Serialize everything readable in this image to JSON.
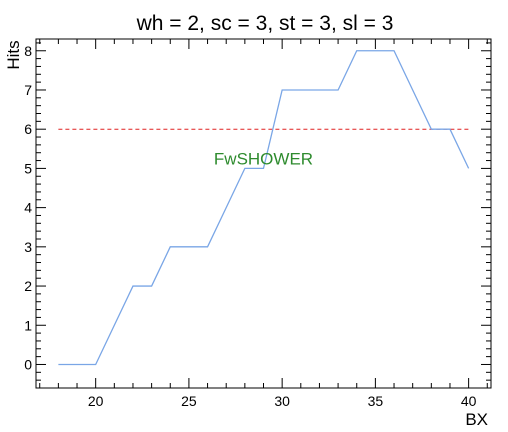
{
  "chart_data": {
    "type": "line",
    "title": "wh = 2, sc = 3, st = 3, sl = 3",
    "xlabel": "BX",
    "ylabel": "Hits",
    "xlim": [
      16.8,
      41.2
    ],
    "ylim": [
      -0.6,
      8.3
    ],
    "xticks": [
      20,
      25,
      30,
      35,
      40
    ],
    "yticks": [
      0,
      1,
      2,
      3,
      4,
      5,
      6,
      7,
      8
    ],
    "grid": false,
    "series": [
      {
        "color": "#7aa6e6",
        "x": [
          18,
          19,
          20,
          21,
          22,
          23,
          24,
          25,
          26,
          27,
          28,
          29,
          30,
          31,
          32,
          33,
          34,
          35,
          36,
          37,
          38,
          39,
          40
        ],
        "y": [
          0,
          0,
          0,
          1,
          2,
          2,
          3,
          3,
          3,
          4,
          5,
          5,
          7,
          7,
          7,
          7,
          8,
          8,
          8,
          7,
          6,
          6,
          5
        ]
      }
    ],
    "threshold": {
      "y": 6,
      "x_range": [
        18,
        40
      ],
      "color": "#e02020",
      "style": "dashed"
    },
    "annotations": [
      {
        "text": "FwSHOWER",
        "x": 29.0,
        "y": 5.1,
        "color": "#2e8b2e"
      }
    ]
  }
}
